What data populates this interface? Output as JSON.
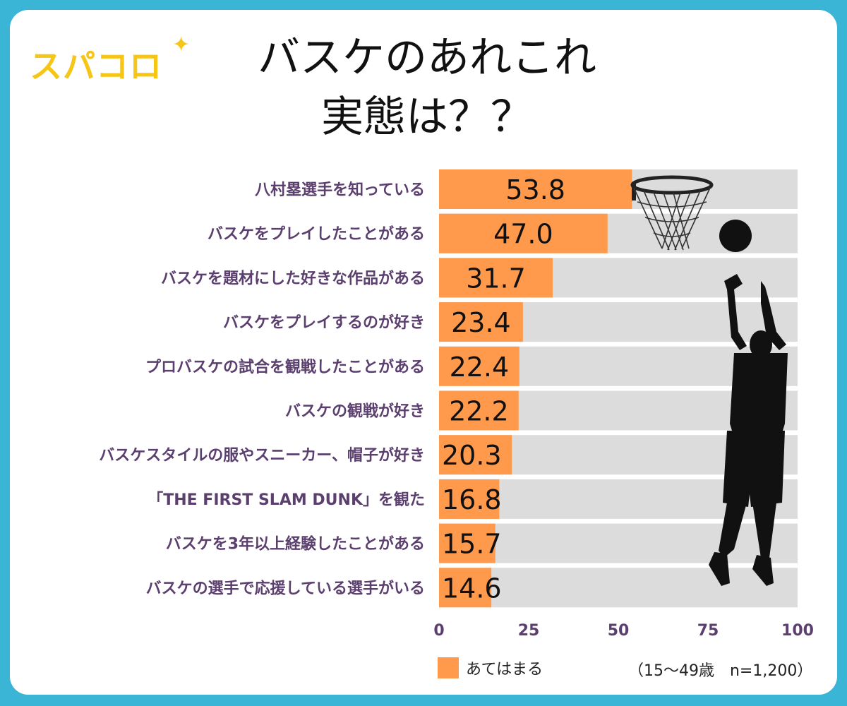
{
  "logo": {
    "text": "スパコロ",
    "star": "✦"
  },
  "title": {
    "line1": "バスケのあれこれ",
    "line2": "実態は？？"
  },
  "chart_data": {
    "type": "bar",
    "orientation": "horizontal",
    "categories": [
      "八村塁選手を知っている",
      "バスケをプレイしたことがある",
      "バスケを題材にした好きな作品がある",
      "バスケをプレイするのが好き",
      "プロバスケの試合を観戦したことがある",
      "バスケの観戦が好き",
      "バスケスタイルの服やスニーカー、帽子が好き",
      "「THE FIRST SLAM DUNK」を観た",
      "バスケを3年以上経験したことがある",
      "バスケの選手で応援している選手がいる"
    ],
    "values": [
      53.8,
      47.0,
      31.7,
      23.4,
      22.4,
      22.2,
      20.3,
      16.8,
      15.7,
      14.6
    ],
    "value_labels": [
      "53.8",
      "47.0",
      "31.7",
      "23.4",
      "22.4",
      "22.2",
      "20.3",
      "16.8",
      "15.7",
      "14.6"
    ],
    "xlim": [
      0,
      100
    ],
    "xticks": [
      "0",
      "25",
      "50",
      "75",
      "100"
    ],
    "series_name": "あてはまる",
    "note": "（15〜49歳　n=1,200）",
    "colors": {
      "bar": "#ff9a4d",
      "track": "#dcdcdc",
      "label": "#5b3f6e",
      "tick": "#5b3f6e"
    }
  }
}
